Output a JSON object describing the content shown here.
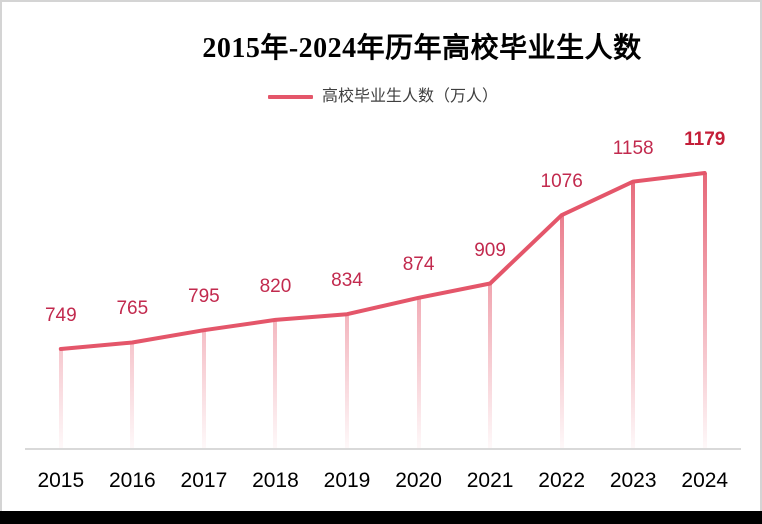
{
  "chart": {
    "title": "2015年-2024年历年高校毕业生人数",
    "legend": {
      "label": "高校毕业生人数（万人）"
    },
    "colors": {
      "line": "#e4566a",
      "data_label": "#c22a4e",
      "data_label_last": "#c41e38",
      "axis_line": "#d9d9d9",
      "legend_text": "#3f3f3f",
      "title_text": "#000000",
      "tick_text": "#000000",
      "panel_background": "#ffffff",
      "panel_border": "#d4d4d4",
      "bottom_bar": "#000000"
    }
  },
  "chart_data": {
    "type": "line",
    "title": "2015年-2024年历年高校毕业生人数",
    "series": [
      {
        "name": "高校毕业生人数（万人）",
        "values": [
          749,
          765,
          795,
          820,
          834,
          874,
          909,
          1076,
          1158,
          1179
        ]
      }
    ],
    "categories": [
      "2015",
      "2016",
      "2017",
      "2018",
      "2019",
      "2020",
      "2021",
      "2022",
      "2023",
      "2024"
    ],
    "xlabel": "",
    "ylabel": "",
    "unit": "万人",
    "ylim": [
      507,
      1250
    ],
    "grid": false,
    "y_axis_visible": false,
    "legend_position": "top-center",
    "data_labels_visible": true,
    "last_data_label_bold": true,
    "drop_lines": "gradient fading toward baseline"
  }
}
